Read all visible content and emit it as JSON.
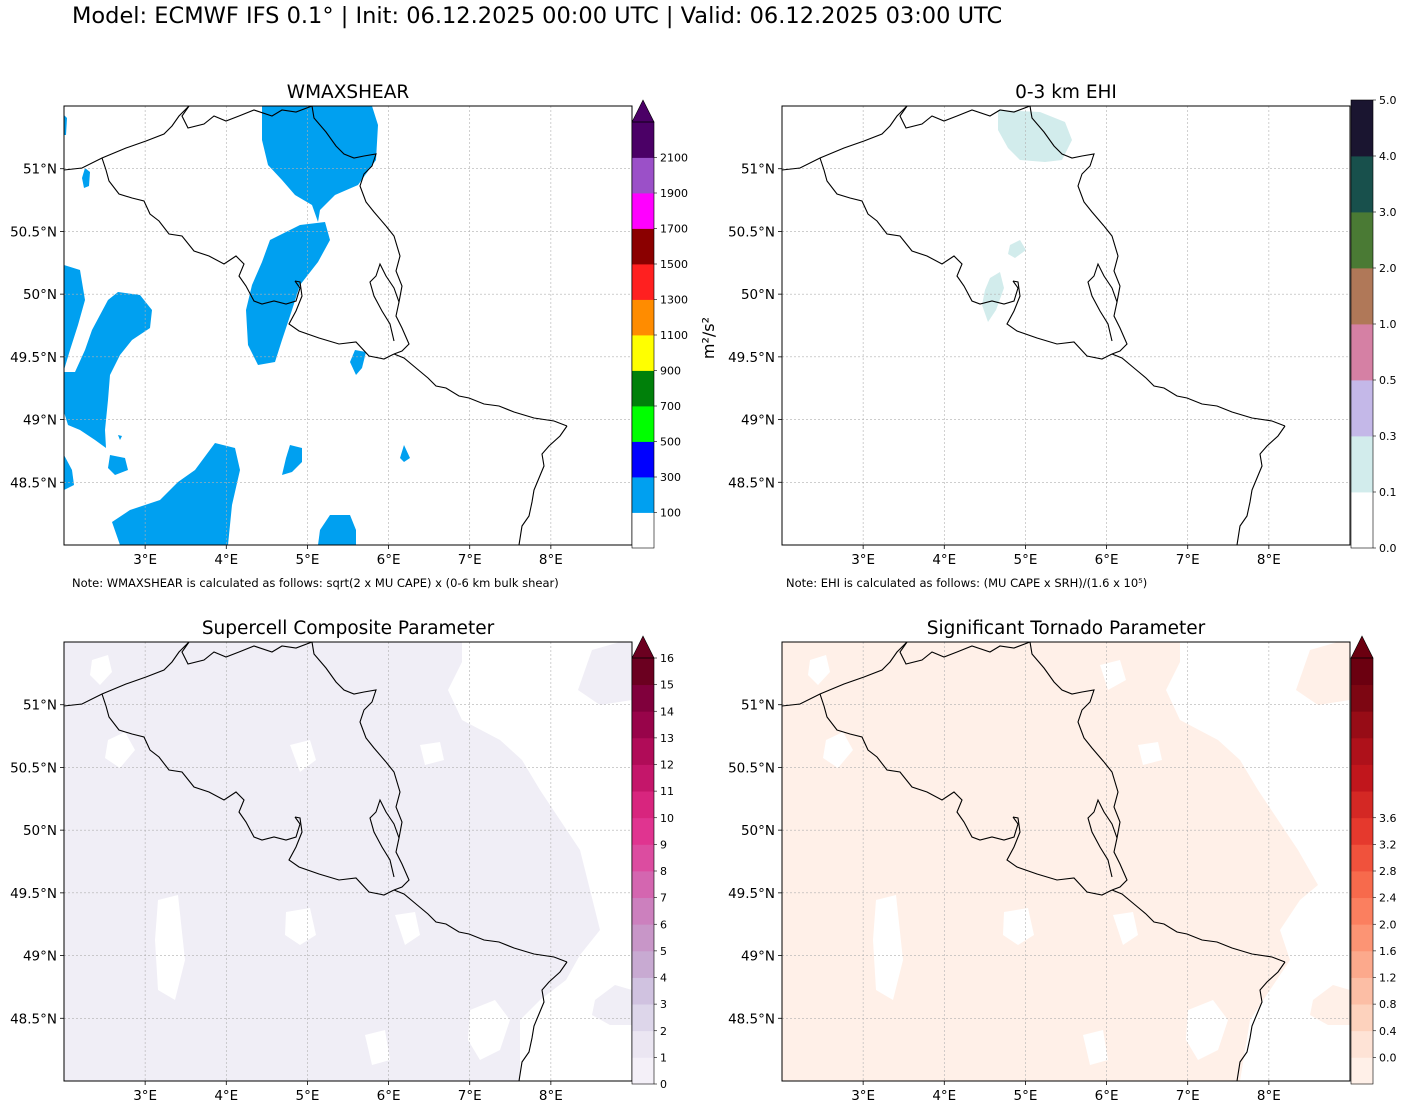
{
  "title": "Model: ECMWF IFS 0.1° | Init: 06.12.2025 00:00 UTC | Valid: 06.12.2025 03:00 UTC",
  "map": {
    "lon_range": [
      2.0,
      9.0
    ],
    "lat_range": [
      48.0,
      51.5
    ],
    "lon_ticks": [
      3,
      4,
      5,
      6,
      7,
      8
    ],
    "lat_ticks": [
      51,
      50.5,
      50,
      49.5,
      49,
      48.5
    ],
    "lon_tick_labels": [
      "3°E",
      "4°E",
      "5°E",
      "6°E",
      "7°E",
      "8°E"
    ],
    "lat_tick_labels": [
      "51°N",
      "50.5°N",
      "50°N",
      "49.5°N",
      "49°N",
      "48.5°N"
    ],
    "gridlines": true,
    "border_color": "#000000"
  },
  "panels": [
    {
      "id": "wmaxshear",
      "title": "WMAXSHEAR",
      "note": "Note: WMAXSHEAR is calculated as follows: sqrt(2 x MU CAPE) x (0-6 km bulk shear)",
      "unit_label": "m²/s²",
      "colorbar": {
        "extend_max": true,
        "extend_color": "#4b0066",
        "tick_labels": [
          "100",
          "300",
          "500",
          "700",
          "900",
          "1100",
          "1300",
          "1500",
          "1700",
          "1900",
          "2100"
        ],
        "colors": [
          "#ffffff",
          "#00a0f0",
          "#0000ff",
          "#00ff00",
          "#00800a",
          "#ffff00",
          "#ff8c00",
          "#ff2020",
          "#8b0000",
          "#ff00ff",
          "#9b50c8",
          "#4b0066"
        ]
      },
      "fill_color": "#00a0f0"
    },
    {
      "id": "ehi",
      "title": "0-3 km EHI",
      "note": "Note: EHI is calculated as follows: (MU CAPE x SRH)/(1.6 x 10⁵)",
      "colorbar": {
        "extend_max": false,
        "tick_labels": [
          "0.0",
          "0.1",
          "0.3",
          "0.5",
          "1.0",
          "2.0",
          "3.0",
          "4.0",
          "5.0"
        ],
        "colors": [
          "#ffffff",
          "#d2ecec",
          "#c4b8e8",
          "#d580a4",
          "#b07858",
          "#4a7a34",
          "#18504c",
          "#1a1530"
        ]
      },
      "fill_color": "#d2ecec"
    },
    {
      "id": "scp",
      "title": "Supercell Composite Parameter",
      "colorbar": {
        "extend_max": true,
        "extend_color": "#6b0020",
        "tick_labels": [
          "0",
          "1",
          "2",
          "3",
          "4",
          "5",
          "6",
          "7",
          "8",
          "9",
          "10",
          "11",
          "12",
          "13",
          "14",
          "15",
          "16"
        ],
        "colors": [
          "#f4f0f8",
          "#ebe6f2",
          "#ddd6ea",
          "#d0c2e0",
          "#c8aad2",
          "#c896c8",
          "#cc80be",
          "#d466b0",
          "#dc4ca0",
          "#e03490",
          "#d8257e",
          "#c4166a",
          "#b00c58",
          "#98044a",
          "#80003c",
          "#6b0020"
        ]
      },
      "fill_color": "#f0eef6"
    },
    {
      "id": "stp",
      "title": "Significant Tornado Parameter",
      "colorbar": {
        "extend_max": true,
        "extend_color": "#6b0010",
        "tick_labels": [
          "0.0",
          "0.4",
          "0.8",
          "1.2",
          "1.6",
          "2.0",
          "2.4",
          "2.8",
          "3.2",
          "3.6"
        ],
        "colors": [
          "#fff0e8",
          "#fee3d6",
          "#fdd2bd",
          "#fcbea5",
          "#fca98c",
          "#fc9474",
          "#fb7f5f",
          "#f76a4c",
          "#f0523c",
          "#e5392d",
          "#d42824",
          "#c1161c",
          "#ae111a",
          "#970c16",
          "#7d0612",
          "#6b0010"
        ]
      },
      "fill_color": "#fff0e8"
    }
  ]
}
